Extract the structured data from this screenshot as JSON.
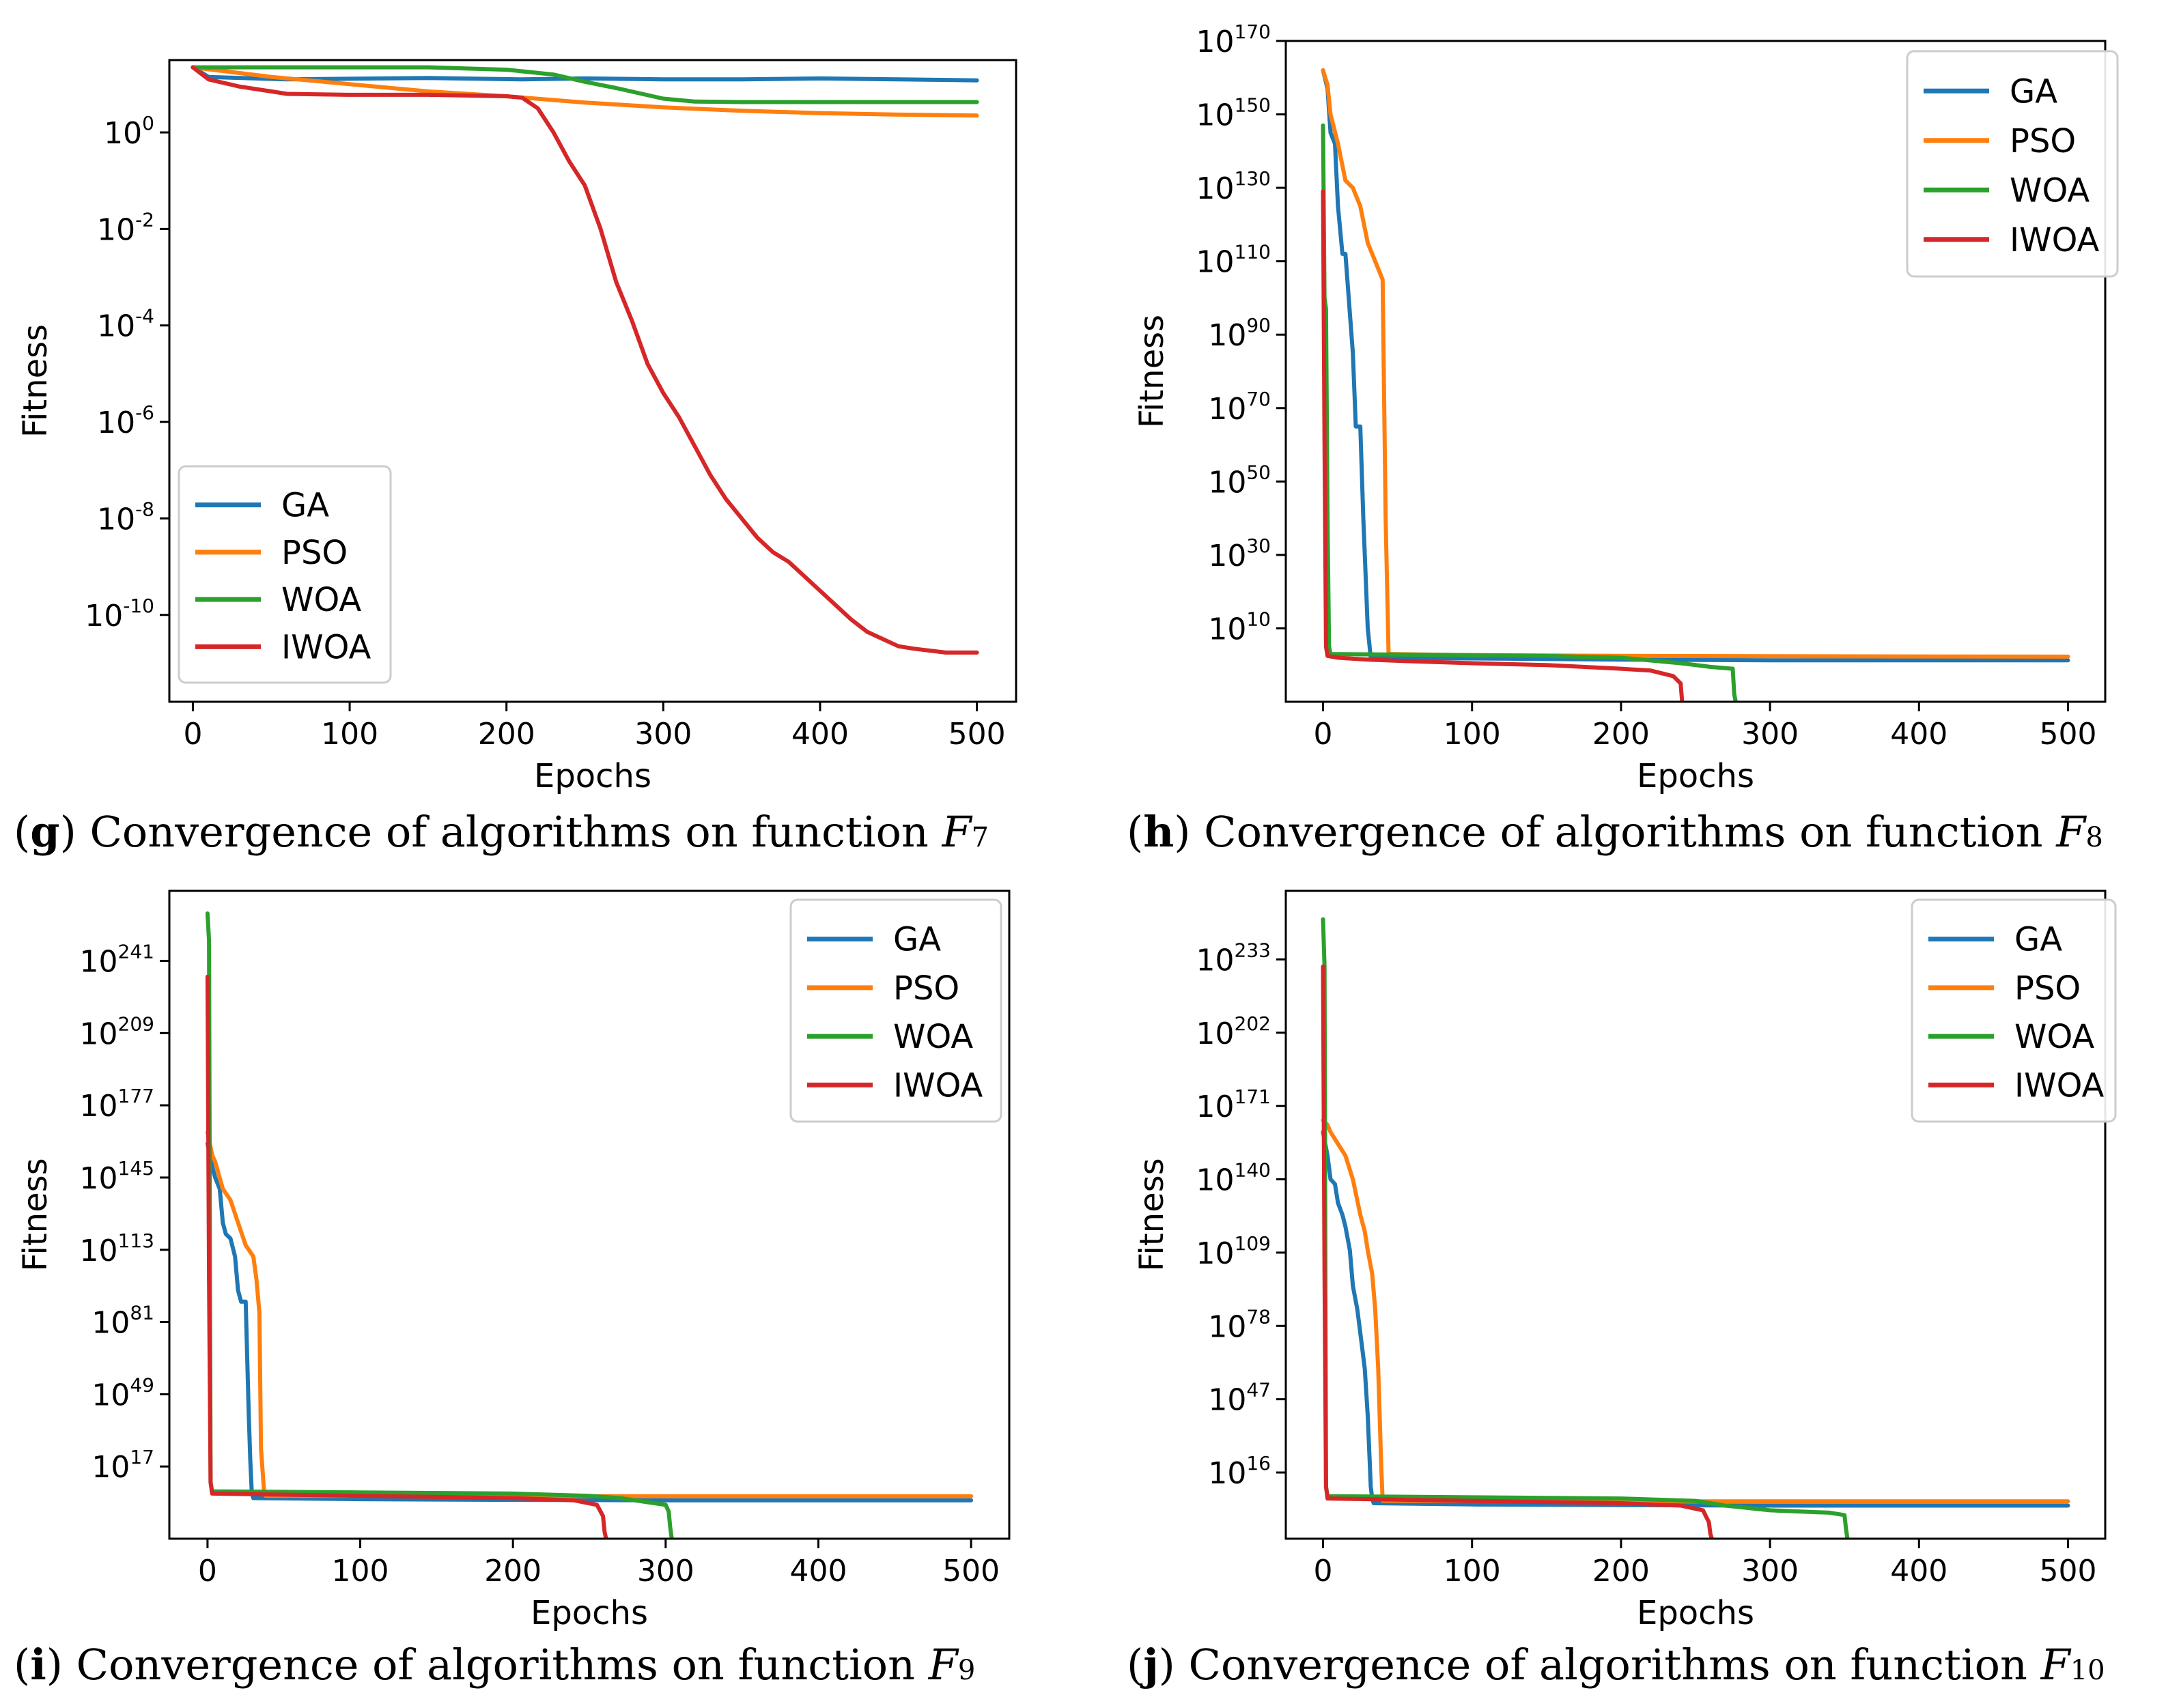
{
  "colors": {
    "GA": "#1f77b4",
    "PSO": "#ff7f0e",
    "WOA": "#2ca02c",
    "IWOA": "#d62728"
  },
  "chart_data": [
    {
      "type": "line",
      "id": "g",
      "caption": {
        "letter": "g",
        "text": " Convergence of algorithms on function ",
        "func": "F",
        "sub": "7"
      },
      "xlabel": "Epochs",
      "ylabel": "Fitness",
      "yscale": "log",
      "xlim": [
        -15,
        525
      ],
      "ylim": [
        -11.8,
        1.5
      ],
      "xticks": [
        0,
        100,
        200,
        300,
        400,
        500
      ],
      "yticks": [
        {
          "base": "10",
          "exp": "0",
          "log": 0
        },
        {
          "base": "10",
          "exp": "-2",
          "log": -2
        },
        {
          "base": "10",
          "exp": "-4",
          "log": -4
        },
        {
          "base": "10",
          "exp": "-6",
          "log": -6
        },
        {
          "base": "10",
          "exp": "-8",
          "log": -8
        },
        {
          "base": "10",
          "exp": "-10",
          "log": -10
        }
      ],
      "legend_position": "lower-left",
      "series": [
        {
          "name": "GA",
          "x": [
            0,
            10,
            60,
            150,
            210,
            250,
            300,
            350,
            400,
            450,
            500
          ],
          "log10_y": [
            1.35,
            1.15,
            1.1,
            1.13,
            1.1,
            1.12,
            1.1,
            1.1,
            1.12,
            1.1,
            1.08
          ]
        },
        {
          "name": "PSO",
          "x": [
            0,
            50,
            100,
            150,
            200,
            250,
            300,
            350,
            400,
            450,
            500
          ],
          "log10_y": [
            1.35,
            1.15,
            1.0,
            0.85,
            0.75,
            0.62,
            0.52,
            0.45,
            0.4,
            0.37,
            0.35
          ]
        },
        {
          "name": "WOA",
          "x": [
            0,
            50,
            100,
            150,
            200,
            230,
            250,
            270,
            300,
            320,
            350,
            400,
            450,
            500
          ],
          "log10_y": [
            1.35,
            1.35,
            1.35,
            1.35,
            1.3,
            1.2,
            1.05,
            0.92,
            0.7,
            0.64,
            0.63,
            0.63,
            0.63,
            0.63
          ]
        },
        {
          "name": "IWOA",
          "x": [
            0,
            10,
            30,
            50,
            60,
            100,
            150,
            200,
            210,
            220,
            230,
            240,
            250,
            260,
            270,
            280,
            290,
            300,
            310,
            320,
            330,
            340,
            350,
            360,
            370,
            380,
            390,
            400,
            410,
            420,
            430,
            440,
            450,
            460,
            480,
            500
          ],
          "log10_y": [
            1.35,
            1.1,
            0.95,
            0.85,
            0.8,
            0.78,
            0.78,
            0.75,
            0.72,
            0.5,
            0.0,
            -0.6,
            -1.1,
            -2.0,
            -3.1,
            -3.9,
            -4.8,
            -5.4,
            -5.9,
            -6.5,
            -7.1,
            -7.6,
            -8.0,
            -8.4,
            -8.7,
            -8.9,
            -9.2,
            -9.5,
            -9.8,
            -10.1,
            -10.35,
            -10.5,
            -10.65,
            -10.7,
            -10.78,
            -10.78
          ]
        }
      ]
    },
    {
      "type": "line",
      "id": "h",
      "caption": {
        "letter": "h",
        "text": " Convergence of algorithms on function ",
        "func": "F",
        "sub": "8"
      },
      "xlabel": "Epochs",
      "ylabel": "Fitness",
      "yscale": "log",
      "xlim": [
        -25,
        525
      ],
      "ylim": [
        -10,
        170
      ],
      "xticks": [
        0,
        100,
        200,
        300,
        400,
        500
      ],
      "yticks": [
        {
          "base": "10",
          "exp": "170",
          "log": 170
        },
        {
          "base": "10",
          "exp": "150",
          "log": 150
        },
        {
          "base": "10",
          "exp": "130",
          "log": 130
        },
        {
          "base": "10",
          "exp": "110",
          "log": 110
        },
        {
          "base": "10",
          "exp": "90",
          "log": 90
        },
        {
          "base": "10",
          "exp": "70",
          "log": 70
        },
        {
          "base": "10",
          "exp": "50",
          "log": 50
        },
        {
          "base": "10",
          "exp": "30",
          "log": 30
        },
        {
          "base": "10",
          "exp": "10",
          "log": 10
        }
      ],
      "legend_position": "upper-right",
      "series": [
        {
          "name": "GA",
          "x": [
            0,
            3,
            5,
            8,
            10,
            13,
            15,
            20,
            22,
            25,
            27,
            30,
            32,
            100,
            200,
            300,
            500
          ],
          "log10_y": [
            162,
            157,
            145,
            142,
            125,
            112,
            112,
            85,
            65,
            65,
            40,
            10,
            2,
            1.8,
            1.5,
            1.3,
            1.3
          ]
        },
        {
          "name": "PSO",
          "x": [
            0,
            3,
            5,
            10,
            15,
            20,
            25,
            30,
            35,
            40,
            42,
            44,
            46,
            100,
            200,
            300,
            500
          ],
          "log10_y": [
            162,
            158,
            150,
            142,
            132,
            130,
            125,
            115,
            110,
            105,
            40,
            3,
            3,
            2.7,
            2.5,
            2.4,
            2.3
          ]
        },
        {
          "name": "WOA",
          "x": [
            0,
            1,
            2,
            3,
            4,
            5,
            100,
            150,
            200,
            240,
            260,
            275,
            276,
            277
          ],
          "log10_y": [
            147,
            100,
            97,
            40,
            5,
            3,
            2.7,
            2.5,
            2,
            0.5,
            -0.5,
            -1,
            -8,
            -10
          ]
        },
        {
          "name": "IWOA",
          "x": [
            0,
            1,
            2,
            3,
            10,
            30,
            60,
            100,
            150,
            200,
            220,
            235,
            240,
            241
          ],
          "log10_y": [
            129,
            60,
            5,
            2.5,
            2,
            1.5,
            1,
            0.5,
            0,
            -1,
            -1.5,
            -3,
            -5,
            -10
          ]
        }
      ]
    },
    {
      "type": "line",
      "id": "i",
      "caption": {
        "letter": "i",
        "text": " Convergence of algorithms on function ",
        "func": "F",
        "sub": "9"
      },
      "xlabel": "Epochs",
      "ylabel": "Fitness",
      "yscale": "log",
      "xlim": [
        -25,
        525
      ],
      "ylim": [
        -15,
        272
      ],
      "xticks": [
        0,
        100,
        200,
        300,
        400,
        500
      ],
      "yticks": [
        {
          "base": "10",
          "exp": "241",
          "log": 241
        },
        {
          "base": "10",
          "exp": "209",
          "log": 209
        },
        {
          "base": "10",
          "exp": "177",
          "log": 177
        },
        {
          "base": "10",
          "exp": "145",
          "log": 145
        },
        {
          "base": "10",
          "exp": "113",
          "log": 113
        },
        {
          "base": "10",
          "exp": "81",
          "log": 81
        },
        {
          "base": "10",
          "exp": "49",
          "log": 49
        },
        {
          "base": "10",
          "exp": "17",
          "log": 17
        }
      ],
      "legend_position": "upper-right",
      "series": [
        {
          "name": "GA",
          "x": [
            0,
            3,
            5,
            8,
            10,
            12,
            15,
            18,
            20,
            22,
            25,
            27,
            28,
            29,
            30,
            100,
            200,
            300,
            500
          ],
          "log10_y": [
            160,
            150,
            145,
            140,
            125,
            120,
            118,
            110,
            95,
            90,
            90,
            40,
            20,
            5,
            3,
            2.5,
            2.2,
            2,
            2
          ]
        },
        {
          "name": "PSO",
          "x": [
            0,
            3,
            5,
            10,
            15,
            20,
            25,
            30,
            32,
            34,
            35,
            37,
            38,
            100,
            200,
            300,
            500
          ],
          "log10_y": [
            165,
            155,
            152,
            140,
            135,
            125,
            115,
            110,
            100,
            85,
            25,
            6,
            4,
            4,
            3.8,
            3.8,
            3.8
          ]
        },
        {
          "name": "WOA",
          "x": [
            0,
            1,
            2,
            3,
            100,
            200,
            250,
            270,
            290,
            300,
            302,
            303,
            304
          ],
          "log10_y": [
            262,
            250,
            10,
            6,
            5.5,
            5,
            4,
            3,
            1,
            0,
            -3,
            -10,
            -15
          ]
        },
        {
          "name": "IWOA",
          "x": [
            0,
            1,
            2,
            3,
            100,
            200,
            240,
            255,
            259,
            260,
            261
          ],
          "log10_y": [
            234,
            100,
            10,
            5,
            4,
            3,
            2,
            0,
            -5,
            -12,
            -15
          ]
        }
      ]
    },
    {
      "type": "line",
      "id": "j",
      "caption": {
        "letter": "j",
        "text": " Convergence of algorithms on function ",
        "func": "F",
        "sub": "10"
      },
      "xlabel": "Epochs",
      "ylabel": "Fitness",
      "yscale": "log",
      "xlim": [
        -25,
        525
      ],
      "ylim": [
        -12,
        262
      ],
      "xticks": [
        0,
        100,
        200,
        300,
        400,
        500
      ],
      "yticks": [
        {
          "base": "10",
          "exp": "233",
          "log": 233
        },
        {
          "base": "10",
          "exp": "202",
          "log": 202
        },
        {
          "base": "10",
          "exp": "171",
          "log": 171
        },
        {
          "base": "10",
          "exp": "140",
          "log": 140
        },
        {
          "base": "10",
          "exp": "109",
          "log": 109
        },
        {
          "base": "10",
          "exp": "78",
          "log": 78
        },
        {
          "base": "10",
          "exp": "47",
          "log": 47
        },
        {
          "base": "10",
          "exp": "16",
          "log": 16
        }
      ],
      "legend_position": "upper-right",
      "series": [
        {
          "name": "GA",
          "x": [
            0,
            3,
            5,
            8,
            10,
            13,
            15,
            18,
            20,
            23,
            25,
            28,
            30,
            32,
            33,
            34,
            100,
            200,
            300,
            500
          ],
          "log10_y": [
            160,
            150,
            140,
            138,
            130,
            125,
            120,
            110,
            95,
            85,
            75,
            60,
            40,
            10,
            5,
            3,
            2.5,
            2.2,
            2,
            2
          ]
        },
        {
          "name": "PSO",
          "x": [
            0,
            3,
            5,
            10,
            15,
            20,
            25,
            28,
            30,
            33,
            35,
            37,
            39,
            40,
            100,
            200,
            300,
            500
          ],
          "log10_y": [
            165,
            163,
            160,
            155,
            150,
            140,
            125,
            118,
            110,
            100,
            85,
            60,
            20,
            4,
            4,
            3.8,
            3.8,
            3.8
          ]
        },
        {
          "name": "WOA",
          "x": [
            0,
            1,
            2,
            3,
            100,
            200,
            250,
            270,
            300,
            340,
            350,
            351,
            352
          ],
          "log10_y": [
            250,
            230,
            10,
            6,
            5.5,
            5,
            4,
            2,
            0,
            -1,
            -2,
            -8,
            -12
          ]
        },
        {
          "name": "IWOA",
          "x": [
            0,
            1,
            2,
            3,
            100,
            200,
            240,
            255,
            259,
            260,
            261
          ],
          "log10_y": [
            230,
            100,
            10,
            5,
            4,
            3,
            2,
            0,
            -5,
            -10,
            -12
          ]
        }
      ]
    }
  ]
}
